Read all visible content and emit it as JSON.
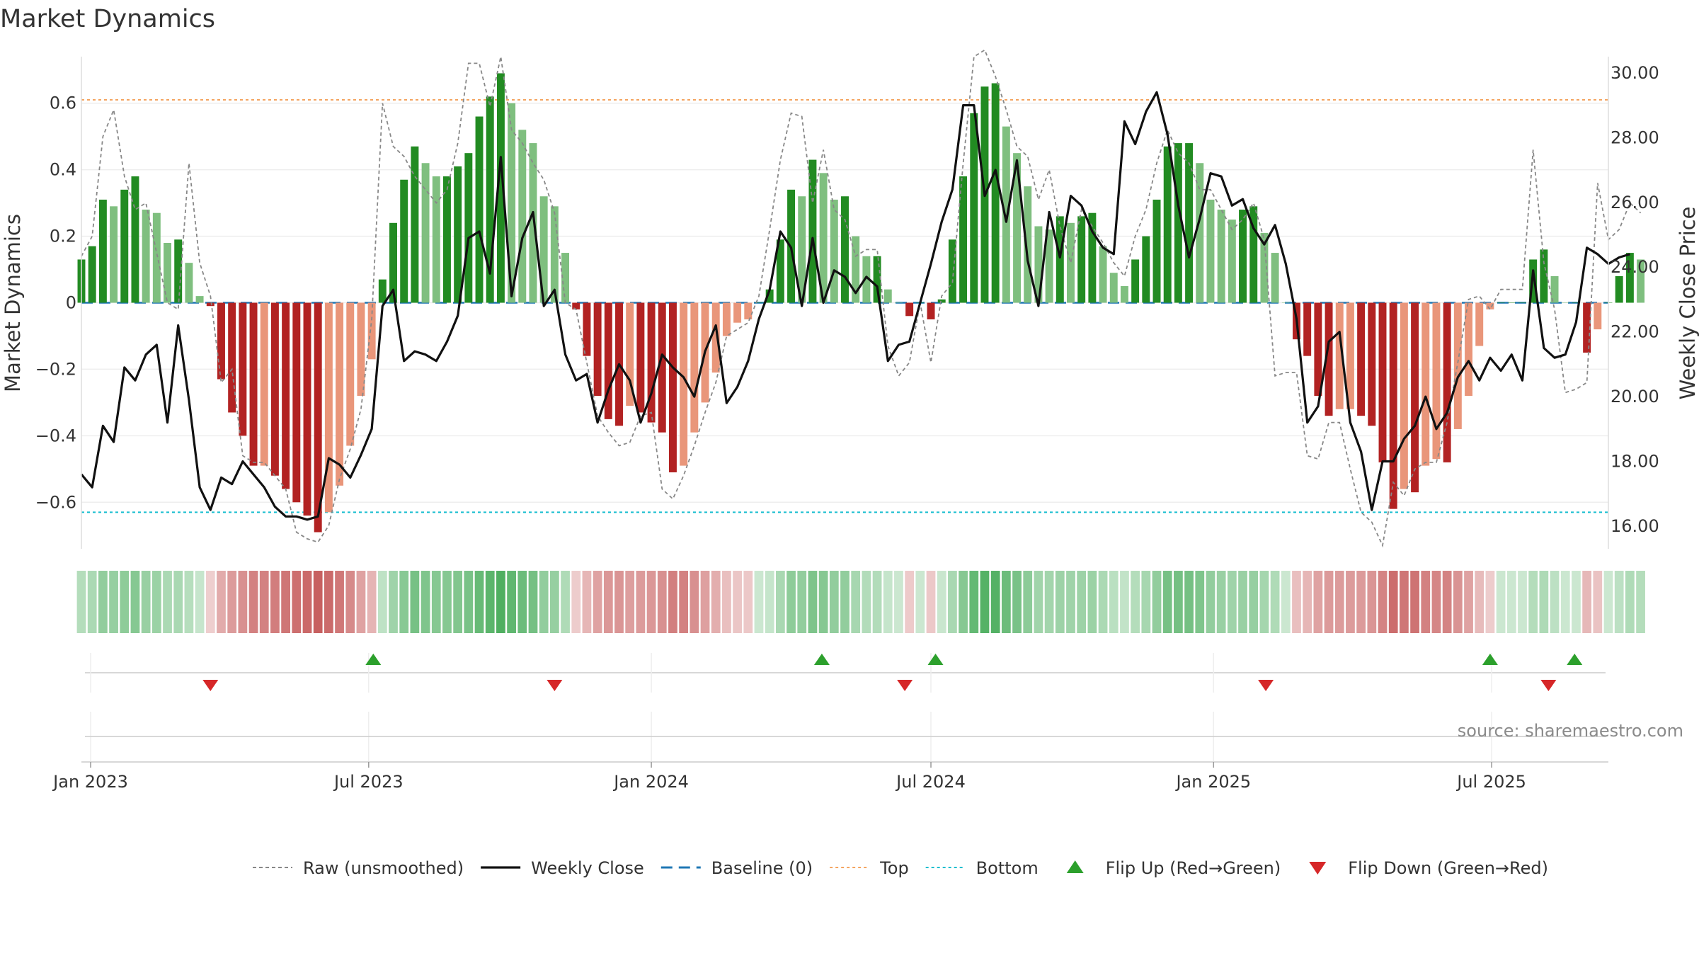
{
  "chart_data": {
    "type": "bar",
    "title": "Market Dynamics",
    "ylabel_left": "Market Dynamics",
    "ylabel_right": "Weekly Close Price",
    "source": "source: sharemaestro.com",
    "x_start": "2022-12-26",
    "x_range": [
      "2022-12-26",
      "2025-09-15"
    ],
    "ylim_left": [
      -0.74,
      0.74
    ],
    "ylim_right": [
      15.3,
      30.5
    ],
    "left_ticks": [
      {
        "v": 0.6,
        "label": "0.6"
      },
      {
        "v": 0.4,
        "label": "0.4"
      },
      {
        "v": 0.2,
        "label": "0.2"
      },
      {
        "v": 0,
        "label": "0"
      },
      {
        "v": -0.2,
        "label": "−0.2"
      },
      {
        "v": -0.4,
        "label": "−0.4"
      },
      {
        "v": -0.6,
        "label": "−0.6"
      }
    ],
    "right_ticks": [
      {
        "v": 30,
        "label": "30.00"
      },
      {
        "v": 28,
        "label": "28.00"
      },
      {
        "v": 26,
        "label": "26.00"
      },
      {
        "v": 24,
        "label": "24.00"
      },
      {
        "v": 22,
        "label": "22.00"
      },
      {
        "v": 20,
        "label": "20.00"
      },
      {
        "v": 18,
        "label": "18.00"
      },
      {
        "v": 16,
        "label": "16.00"
      }
    ],
    "x_ticks": [
      {
        "date": "2023-01-01",
        "label": "Jan 2023"
      },
      {
        "date": "2023-07-01",
        "label": "Jul 2023"
      },
      {
        "date": "2024-01-01",
        "label": "Jan 2024"
      },
      {
        "date": "2024-07-01",
        "label": "Jul 2024"
      },
      {
        "date": "2025-01-01",
        "label": "Jan 2025"
      },
      {
        "date": "2025-07-01",
        "label": "Jul 2025"
      }
    ],
    "top_line": 0.61,
    "bottom_line": -0.63,
    "baseline": 0,
    "dynamics": [
      0.13,
      0.17,
      0.31,
      0.29,
      0.34,
      0.38,
      0.28,
      0.27,
      0.18,
      0.19,
      0.12,
      0.02,
      -0.01,
      -0.23,
      -0.33,
      -0.4,
      -0.49,
      -0.49,
      -0.52,
      -0.56,
      -0.6,
      -0.64,
      -0.69,
      -0.63,
      -0.55,
      -0.43,
      -0.28,
      -0.17,
      0.07,
      0.24,
      0.37,
      0.47,
      0.42,
      0.38,
      0.38,
      0.41,
      0.45,
      0.56,
      0.62,
      0.69,
      0.6,
      0.52,
      0.48,
      0.32,
      0.29,
      0.15,
      -0.02,
      -0.16,
      -0.28,
      -0.35,
      -0.37,
      -0.31,
      -0.33,
      -0.36,
      -0.39,
      -0.51,
      -0.49,
      -0.39,
      -0.3,
      -0.21,
      -0.1,
      -0.06,
      -0.05,
      0.0,
      0.04,
      0.19,
      0.34,
      0.32,
      0.43,
      0.39,
      0.31,
      0.32,
      0.2,
      0.14,
      0.14,
      0.04,
      0.0,
      -0.04,
      0.0,
      -0.05,
      0.01,
      0.19,
      0.38,
      0.57,
      0.65,
      0.66,
      0.53,
      0.45,
      0.35,
      0.23,
      0.22,
      0.26,
      0.24,
      0.26,
      0.27,
      0.17,
      0.09,
      0.05,
      0.13,
      0.2,
      0.31,
      0.47,
      0.48,
      0.48,
      0.42,
      0.31,
      0.28,
      0.25,
      0.28,
      0.29,
      0.21,
      0.15,
      0.0,
      -0.11,
      -0.16,
      -0.28,
      -0.34,
      -0.32,
      -0.32,
      -0.34,
      -0.37,
      -0.48,
      -0.62,
      -0.56,
      -0.57,
      -0.49,
      -0.47,
      -0.48,
      -0.38,
      -0.28,
      -0.13,
      -0.02,
      0.0,
      0.0,
      0.0,
      0.13,
      0.16,
      0.08,
      0.0,
      0.0,
      -0.15,
      -0.08,
      0.0,
      0.08,
      0.15,
      0.13
    ],
    "raw": [
      0.14,
      0.2,
      0.5,
      0.58,
      0.38,
      0.28,
      0.3,
      0.15,
      0.0,
      -0.02,
      0.42,
      0.12,
      0.02,
      -0.24,
      -0.2,
      -0.46,
      -0.48,
      -0.48,
      -0.52,
      -0.56,
      -0.69,
      -0.71,
      -0.72,
      -0.67,
      -0.53,
      -0.44,
      -0.32,
      -0.05,
      0.6,
      0.47,
      0.44,
      0.38,
      0.34,
      0.3,
      0.34,
      0.48,
      0.72,
      0.72,
      0.59,
      0.74,
      0.52,
      0.48,
      0.42,
      0.37,
      0.27,
      0.0,
      -0.02,
      -0.18,
      -0.34,
      -0.39,
      -0.43,
      -0.42,
      -0.34,
      -0.33,
      -0.56,
      -0.59,
      -0.52,
      -0.43,
      -0.33,
      -0.24,
      -0.1,
      -0.08,
      -0.06,
      0.02,
      0.22,
      0.43,
      0.57,
      0.56,
      0.3,
      0.46,
      0.28,
      0.25,
      0.14,
      0.16,
      0.16,
      -0.13,
      -0.22,
      -0.18,
      0.0,
      -0.18,
      0.02,
      0.06,
      0.42,
      0.74,
      0.76,
      0.68,
      0.58,
      0.47,
      0.44,
      0.31,
      0.4,
      0.23,
      0.12,
      0.28,
      0.23,
      0.18,
      0.12,
      0.08,
      0.2,
      0.28,
      0.42,
      0.52,
      0.45,
      0.42,
      0.34,
      0.34,
      0.28,
      0.22,
      0.25,
      0.3,
      0.19,
      -0.22,
      -0.21,
      -0.21,
      -0.46,
      -0.47,
      -0.36,
      -0.36,
      -0.5,
      -0.63,
      -0.66,
      -0.73,
      -0.54,
      -0.58,
      -0.5,
      -0.48,
      -0.48,
      -0.36,
      -0.18,
      0.01,
      0.02,
      -0.02,
      0.04,
      0.04,
      0.04,
      0.46,
      0.12,
      -0.02,
      -0.27,
      -0.26,
      -0.24,
      0.36,
      0.19,
      0.22,
      0.3,
      0.27
    ],
    "close": [
      17.6,
      17.2,
      19.1,
      18.6,
      20.9,
      20.5,
      21.3,
      21.6,
      19.2,
      22.2,
      19.9,
      17.2,
      16.5,
      17.5,
      17.3,
      18.0,
      17.6,
      17.2,
      16.6,
      16.3,
      16.3,
      16.2,
      16.3,
      18.1,
      17.9,
      17.5,
      18.2,
      19.0,
      22.8,
      23.3,
      21.1,
      21.4,
      21.3,
      21.1,
      21.7,
      22.5,
      24.9,
      25.1,
      23.8,
      27.4,
      23.1,
      24.9,
      25.7,
      22.8,
      23.3,
      21.3,
      20.5,
      20.7,
      19.2,
      20.2,
      21.0,
      20.5,
      19.2,
      20.1,
      21.3,
      20.9,
      20.6,
      20.0,
      21.4,
      22.2,
      19.8,
      20.3,
      21.1,
      22.4,
      23.3,
      25.1,
      24.6,
      22.8,
      24.9,
      22.9,
      23.9,
      23.7,
      23.2,
      23.7,
      23.4,
      21.1,
      21.6,
      21.7,
      22.9,
      24.1,
      25.4,
      26.4,
      29.0,
      29.0,
      26.2,
      27.0,
      25.4,
      27.3,
      24.2,
      22.8,
      25.7,
      24.3,
      26.2,
      25.9,
      25.1,
      24.6,
      24.4,
      28.5,
      27.8,
      28.8,
      29.4,
      28.1,
      25.9,
      24.3,
      25.5,
      26.9,
      26.8,
      25.9,
      26.1,
      25.2,
      24.7,
      25.3,
      24.1,
      22.4,
      19.2,
      19.7,
      21.7,
      22.0,
      19.2,
      18.3,
      16.5,
      18.0,
      18.0,
      18.7,
      19.1,
      20.0,
      19.0,
      19.5,
      20.6,
      21.1,
      20.5,
      21.2,
      20.8,
      21.3,
      20.5,
      23.9,
      21.5,
      21.2,
      21.3,
      22.3,
      24.6,
      24.4,
      24.1,
      24.3,
      24.4
    ],
    "flip_up_dates": [
      "2023-07-04",
      "2024-04-21",
      "2024-07-04",
      "2025-06-30",
      "2025-08-24"
    ],
    "flip_down_dates": [
      "2023-03-20",
      "2023-10-30",
      "2024-06-14",
      "2025-02-04",
      "2025-08-07"
    ],
    "legend": [
      {
        "key": "raw",
        "label": "Raw (unsmoothed)"
      },
      {
        "key": "close",
        "label": "Weekly Close"
      },
      {
        "key": "baseline",
        "label": "Baseline (0)"
      },
      {
        "key": "top",
        "label": "Top"
      },
      {
        "key": "bottom",
        "label": "Bottom"
      },
      {
        "key": "flipup",
        "label": "Flip Up (Red→Green)"
      },
      {
        "key": "flipdown",
        "label": "Flip Down (Green→Red)"
      }
    ],
    "colors": {
      "strong_green": "#228b22",
      "light_green": "#7fbf7f",
      "strong_red": "#b22222",
      "light_red": "#e9967a",
      "close": "#111111",
      "raw": "#888888",
      "baseline": "#1f77b4",
      "top": "#f4a460",
      "bottom": "#17becf",
      "flip_up": "#2ca02c",
      "flip_down": "#d62728"
    }
  }
}
